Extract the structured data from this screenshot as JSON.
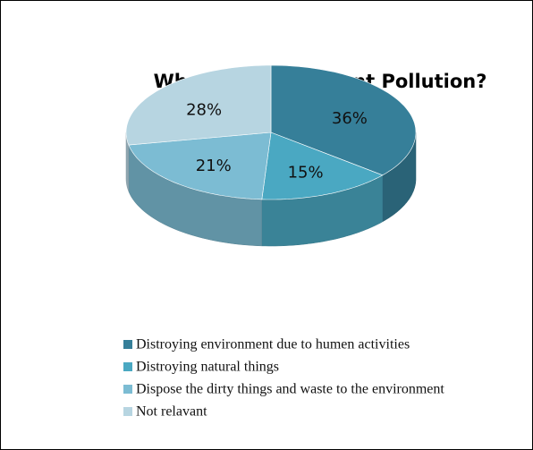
{
  "chart_data": {
    "type": "pie3d",
    "title": "What is environment Pollution?",
    "categories": [
      "Distroying environment due to humen activities",
      "Distroying natural things",
      "Dispose the dirty things and waste to the environment",
      "Not relavant"
    ],
    "values": [
      36,
      15,
      21,
      28
    ],
    "value_labels": [
      "36%",
      "15%",
      "21%",
      "28%"
    ],
    "colors": [
      "#367f99",
      "#4aa8c2",
      "#7cbcd3",
      "#b7d5e1"
    ],
    "legend": "bottom"
  }
}
